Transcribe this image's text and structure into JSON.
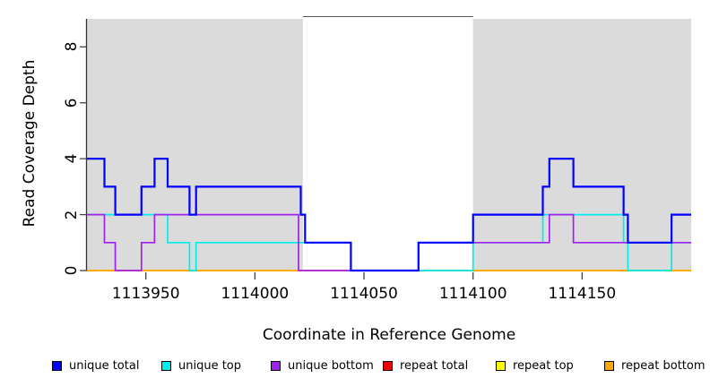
{
  "chart_data": {
    "type": "line",
    "subtype": "step-coverage-plot",
    "title": "",
    "xlabel": "Coordinate in Reference Genome",
    "ylabel": "Read Coverage Depth",
    "xlim": [
      1113923,
      1114200
    ],
    "ylim": [
      0,
      9.1
    ],
    "grid": false,
    "legend_position": "bottom",
    "x_ticks": [
      1113950,
      1114000,
      1114050,
      1114100,
      1114150
    ],
    "x_tick_labels": [
      "1113950",
      "1114000",
      "1114050",
      "1114100",
      "1114150"
    ],
    "y_ticks": [
      0,
      2,
      4,
      6,
      8
    ],
    "y_tick_labels": [
      "0",
      "2",
      "4",
      "6",
      "8"
    ],
    "highlight_regions": {
      "color": "#DBDBDB",
      "ranges": [
        [
          1113923,
          1114022
        ],
        [
          1114100,
          1114200
        ]
      ]
    },
    "series": [
      {
        "name": "repeat total",
        "color": "#EE0000",
        "steps": [
          [
            1113923,
            0
          ],
          [
            1114200,
            0
          ]
        ]
      },
      {
        "name": "repeat top",
        "color": "#FFFF00",
        "steps": [
          [
            1113923,
            0
          ],
          [
            1114200,
            0
          ]
        ]
      },
      {
        "name": "repeat bottom",
        "color": "#FFA500",
        "steps": [
          [
            1113923,
            0
          ],
          [
            1114200,
            0
          ]
        ]
      },
      {
        "name": "unique top",
        "color": "#00EEEE",
        "steps": [
          [
            1113923,
            2
          ],
          [
            1113960,
            1
          ],
          [
            1113970,
            0
          ],
          [
            1113973,
            1
          ],
          [
            1114044,
            0
          ],
          [
            1114100,
            1
          ],
          [
            1114132,
            2
          ],
          [
            1114169,
            1
          ],
          [
            1114171,
            0
          ],
          [
            1114191,
            1
          ],
          [
            1114200,
            1
          ]
        ]
      },
      {
        "name": "unique bottom",
        "color": "#A020F0",
        "steps": [
          [
            1113923,
            2
          ],
          [
            1113931,
            1
          ],
          [
            1113936,
            0
          ],
          [
            1113948,
            1
          ],
          [
            1113954,
            2
          ],
          [
            1114020,
            0
          ],
          [
            1114075,
            1
          ],
          [
            1114135,
            2
          ],
          [
            1114146,
            1
          ],
          [
            1114200,
            1
          ]
        ]
      },
      {
        "name": "unique total",
        "color": "#0000FF",
        "steps": [
          [
            1113923,
            4
          ],
          [
            1113931,
            3
          ],
          [
            1113936,
            2
          ],
          [
            1113948,
            3
          ],
          [
            1113954,
            4
          ],
          [
            1113960,
            3
          ],
          [
            1113970,
            2
          ],
          [
            1113973,
            3
          ],
          [
            1114021,
            2
          ],
          [
            1114023,
            1
          ],
          [
            1114044,
            0
          ],
          [
            1114075,
            1
          ],
          [
            1114100,
            2
          ],
          [
            1114132,
            3
          ],
          [
            1114135,
            4
          ],
          [
            1114146,
            3
          ],
          [
            1114169,
            2
          ],
          [
            1114171,
            1
          ],
          [
            1114191,
            2
          ],
          [
            1114200,
            2
          ]
        ]
      }
    ],
    "legend": [
      {
        "label": "unique total",
        "color": "#0000FF"
      },
      {
        "label": "unique top",
        "color": "#00EEEE"
      },
      {
        "label": "unique bottom",
        "color": "#A020F0"
      },
      {
        "label": "repeat total",
        "color": "#EE0000"
      },
      {
        "label": "repeat top",
        "color": "#FFFF00"
      },
      {
        "label": "repeat bottom",
        "color": "#FFA500"
      }
    ]
  }
}
